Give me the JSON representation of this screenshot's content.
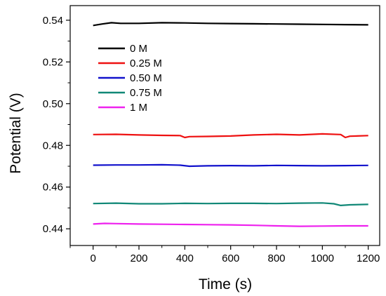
{
  "chart_data": {
    "type": "line",
    "title": "",
    "xlabel": "Time (s)",
    "ylabel": "Potential (V)",
    "xlim": [
      -100,
      1250
    ],
    "ylim": [
      0.432,
      0.547
    ],
    "xticks": [
      0,
      200,
      400,
      600,
      800,
      1000,
      1200
    ],
    "yticks": [
      0.44,
      0.46,
      0.48,
      0.5,
      0.52,
      0.54
    ],
    "ytick_labels": [
      "0.44",
      "0.46",
      "0.48",
      "0.50",
      "0.52",
      "0.54"
    ],
    "grid": false,
    "legend_position": "top-left",
    "series": [
      {
        "name": "0 M",
        "color": "#000000",
        "x": [
          0,
          40,
          80,
          120,
          200,
          300,
          400,
          500,
          600,
          700,
          800,
          900,
          1000,
          1100,
          1200
        ],
        "y": [
          0.5375,
          0.5382,
          0.5388,
          0.5385,
          0.5385,
          0.5388,
          0.5387,
          0.5385,
          0.5384,
          0.5383,
          0.5382,
          0.5381,
          0.538,
          0.5379,
          0.5378
        ]
      },
      {
        "name": "0.25 M",
        "color": "#ee1111",
        "x": [
          0,
          100,
          200,
          300,
          380,
          400,
          420,
          500,
          600,
          700,
          800,
          900,
          1000,
          1080,
          1100,
          1120,
          1200
        ],
        "y": [
          0.4852,
          0.4853,
          0.485,
          0.4848,
          0.4847,
          0.4838,
          0.4842,
          0.4843,
          0.4845,
          0.485,
          0.4853,
          0.485,
          0.4855,
          0.4852,
          0.4838,
          0.4844,
          0.4847
        ]
      },
      {
        "name": "0.50 M",
        "color": "#1111cc",
        "x": [
          0,
          100,
          200,
          300,
          380,
          420,
          500,
          600,
          700,
          800,
          900,
          1000,
          1100,
          1200
        ],
        "y": [
          0.4705,
          0.4706,
          0.4706,
          0.4707,
          0.4705,
          0.47,
          0.4702,
          0.4703,
          0.4702,
          0.4704,
          0.4703,
          0.4702,
          0.4703,
          0.4704
        ]
      },
      {
        "name": "0.75 M",
        "color": "#118877",
        "x": [
          0,
          100,
          200,
          300,
          400,
          500,
          600,
          700,
          800,
          900,
          1000,
          1050,
          1080,
          1120,
          1200
        ],
        "y": [
          0.4521,
          0.4523,
          0.452,
          0.452,
          0.4522,
          0.4521,
          0.4522,
          0.4522,
          0.4521,
          0.4523,
          0.4524,
          0.452,
          0.4512,
          0.4515,
          0.4517
        ]
      },
      {
        "name": "1 M",
        "color": "#ee22ee",
        "x": [
          0,
          50,
          100,
          200,
          300,
          400,
          500,
          600,
          700,
          800,
          900,
          1000,
          1100,
          1200
        ],
        "y": [
          0.4423,
          0.4426,
          0.4425,
          0.4423,
          0.4422,
          0.4421,
          0.442,
          0.4419,
          0.4417,
          0.4414,
          0.4412,
          0.4413,
          0.4414,
          0.4414
        ]
      }
    ]
  }
}
